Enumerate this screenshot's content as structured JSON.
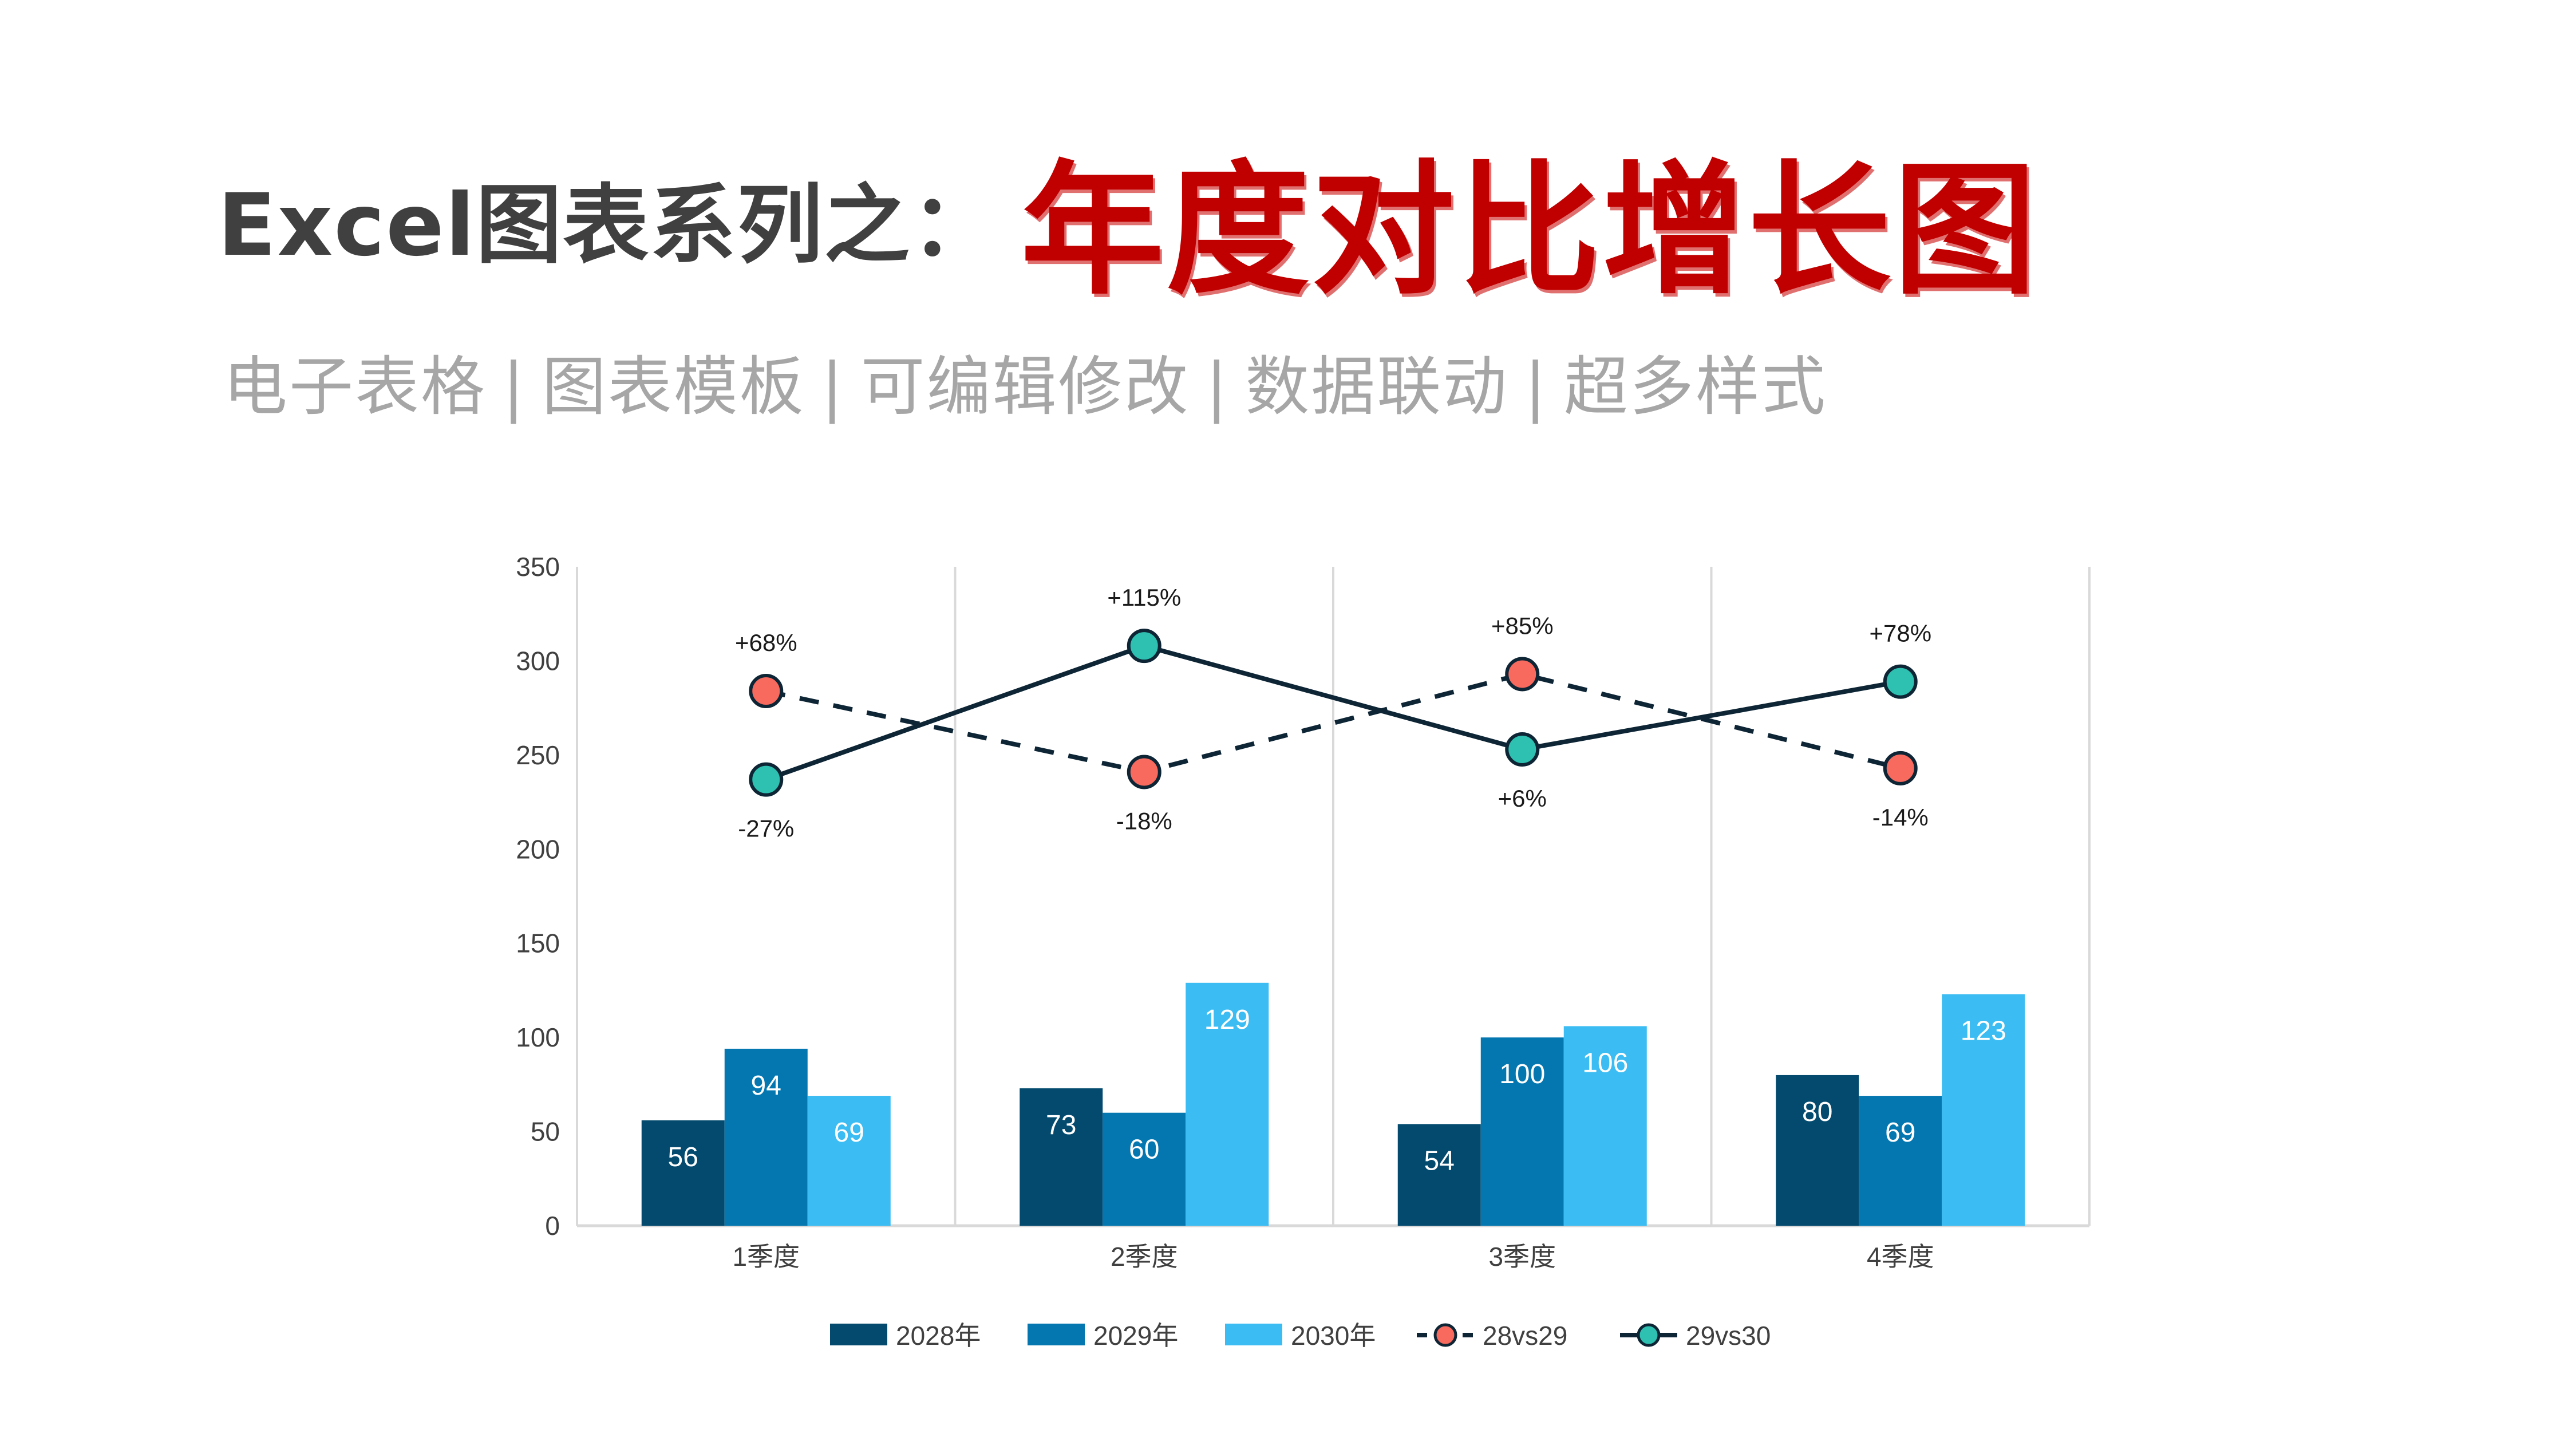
{
  "header": {
    "title_prefix": "Excel图表系列之：",
    "title_main": "年度对比增长图",
    "tags": [
      "电子表格",
      "图表模板",
      "可编辑修改",
      "数据联动",
      "超多样式"
    ],
    "separator": "|"
  },
  "colors": {
    "y2028": "#034a6e",
    "y2029": "#0577b0",
    "y2030": "#3bbcf2",
    "line_28vs29_marker": "#f96a5e",
    "line_29vs30_marker": "#2ec0b0",
    "line_stroke": "#0d2535",
    "axis_text": "#404040",
    "gridline": "#d9d9d9",
    "title_accent": "#c00000",
    "subtitle": "#a6a6a6"
  },
  "chart_data": {
    "type": "bar",
    "title": "年度对比增长图",
    "xlabel": "",
    "ylabel": "",
    "ylim": [
      0,
      350
    ],
    "yticks": [
      0,
      50,
      100,
      150,
      200,
      250,
      300,
      350
    ],
    "categories": [
      "1季度",
      "2季度",
      "3季度",
      "4季度"
    ],
    "series": [
      {
        "name": "2028年",
        "type": "bar",
        "values": [
          56,
          73,
          54,
          80
        ]
      },
      {
        "name": "2029年",
        "type": "bar",
        "values": [
          94,
          60,
          100,
          69
        ]
      },
      {
        "name": "2030年",
        "type": "bar",
        "values": [
          69,
          129,
          106,
          123
        ]
      },
      {
        "name": "28vs29",
        "type": "line",
        "style": "dashed",
        "values": [
          284,
          241,
          293,
          243
        ],
        "labels": [
          "+68%",
          "-18%",
          "+85%",
          "-14%"
        ],
        "label_position": [
          "above",
          "below",
          "above",
          "below"
        ]
      },
      {
        "name": "29vs30",
        "type": "line",
        "style": "solid",
        "values": [
          237,
          308,
          253,
          289
        ],
        "labels": [
          "-27%",
          "+115%",
          "+6%",
          "+78%"
        ],
        "label_position": [
          "below",
          "above",
          "below",
          "above"
        ]
      }
    ],
    "legend": [
      "2028年",
      "2029年",
      "2030年",
      "28vs29",
      "29vs30"
    ],
    "legend_position": "bottom",
    "grid": "vertical category separators"
  }
}
